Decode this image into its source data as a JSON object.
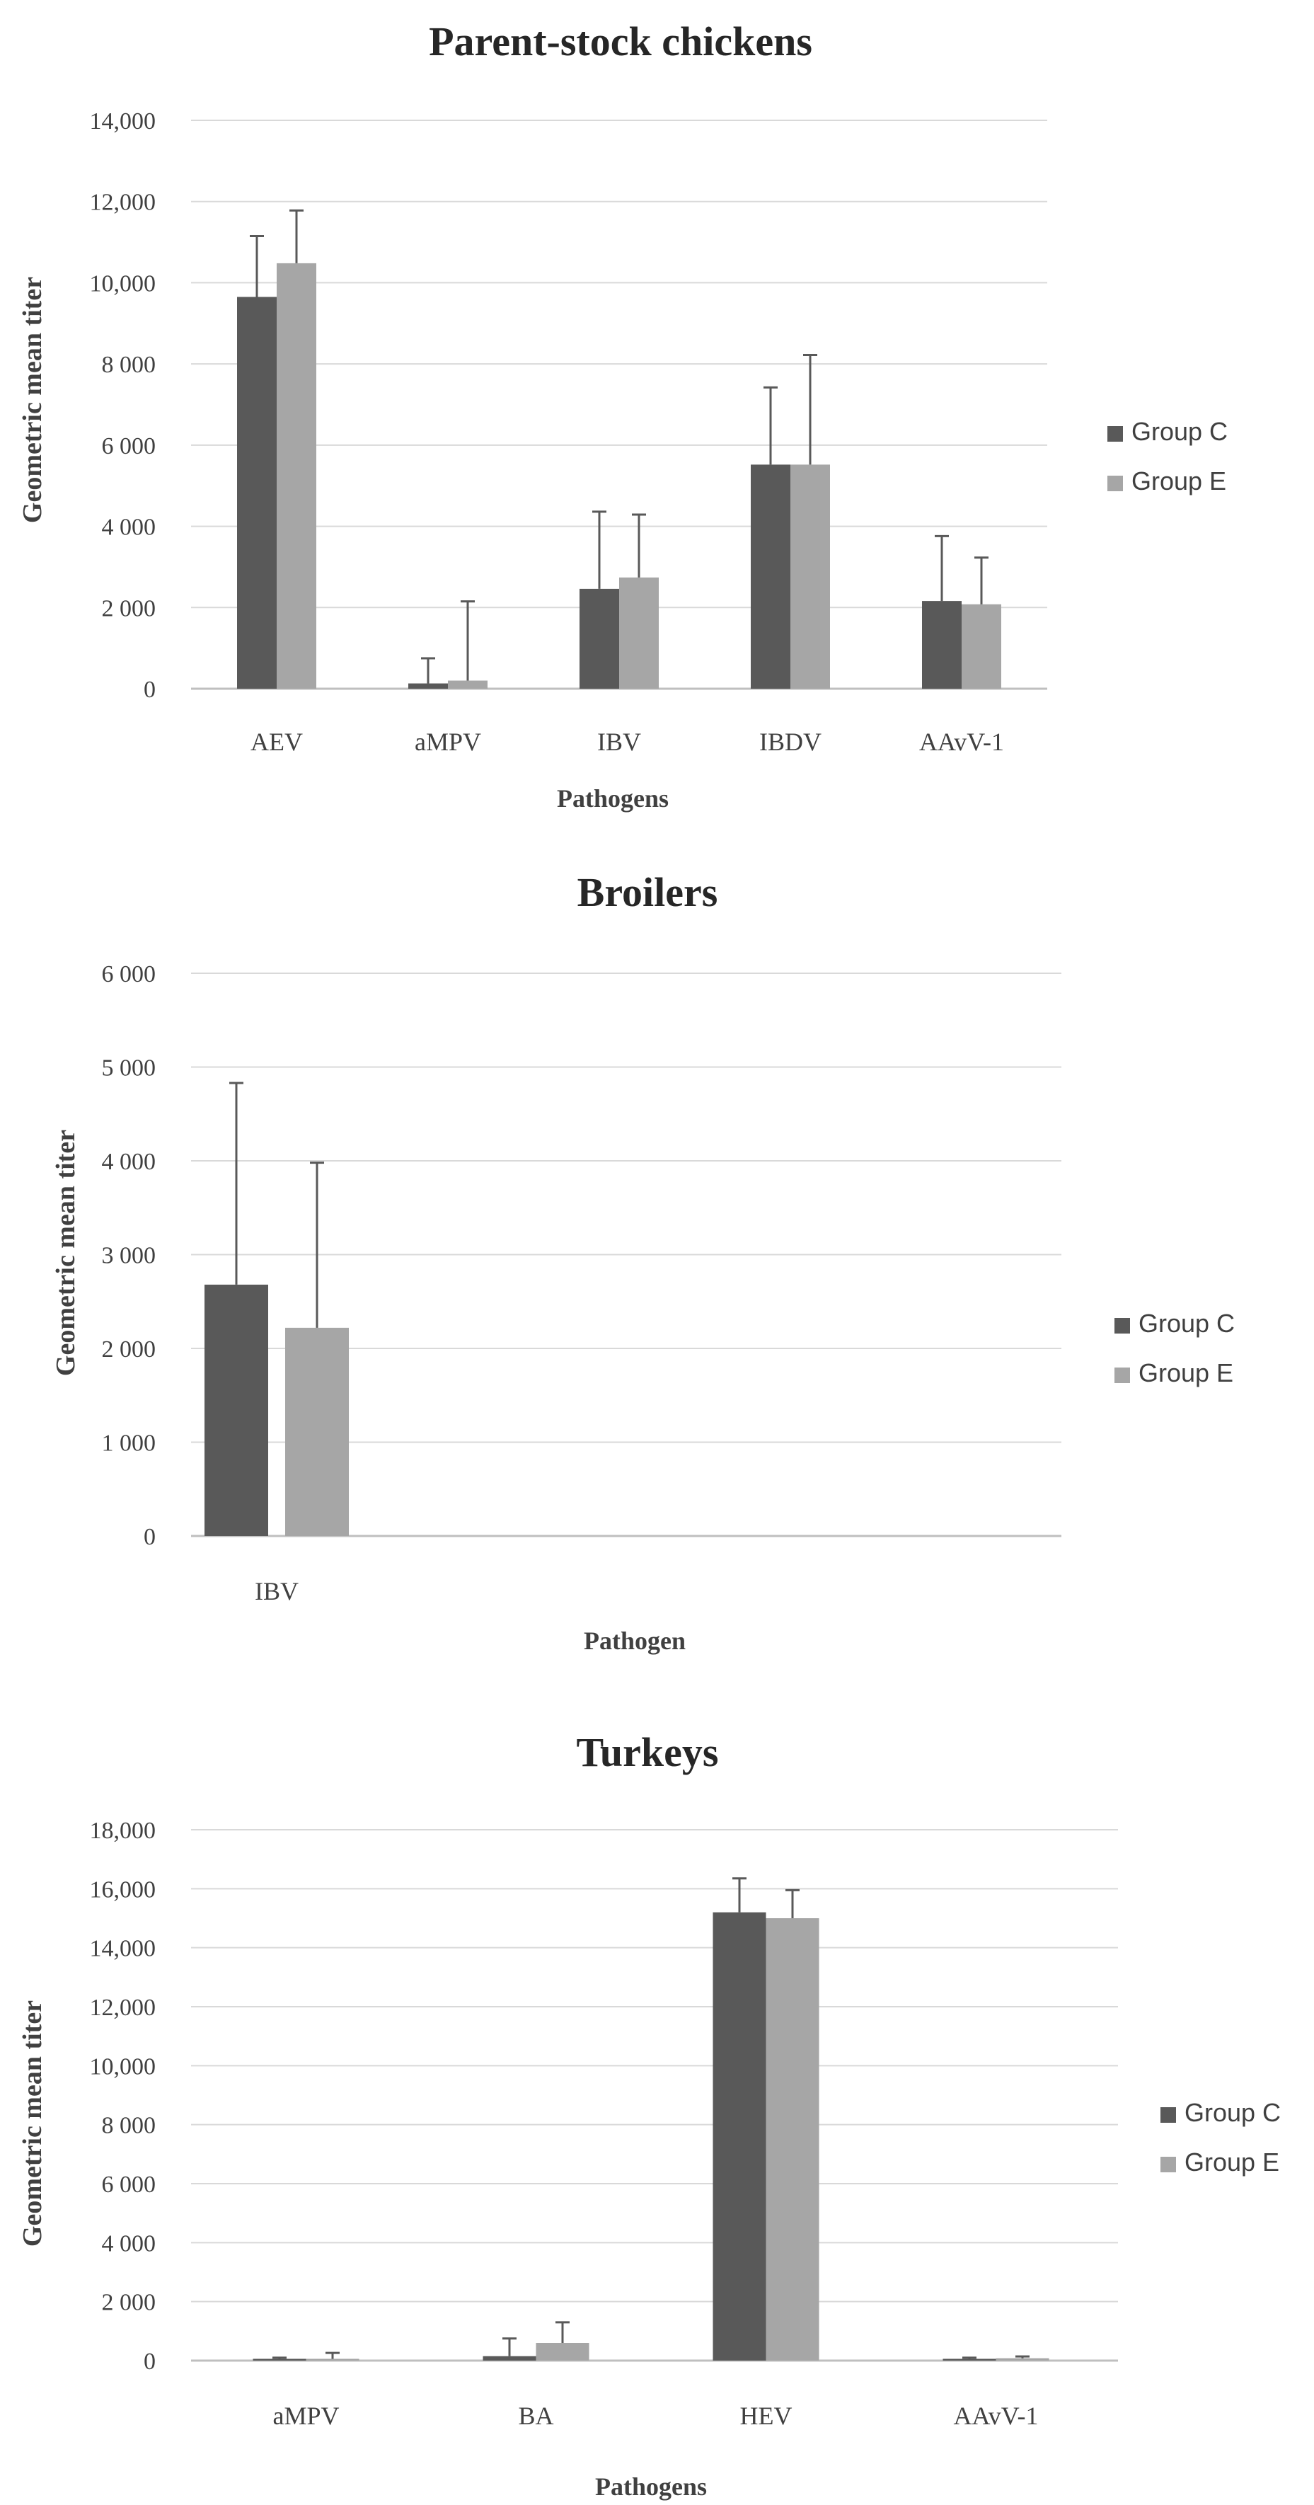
{
  "colors": {
    "group_c": "#595959",
    "group_e": "#a6a6a6",
    "grid": "#d9d9d9",
    "axis": "#bfbfbf",
    "text": "#404040",
    "title": "#262626"
  },
  "chart_data": [
    {
      "type": "bar",
      "title": "Parent-stock chickens",
      "xlabel": "Pathogens",
      "ylabel": "Geometric  mean  titer",
      "ylim": [
        0,
        14000
      ],
      "yticks": [
        0,
        2000,
        4000,
        6000,
        8000,
        10000,
        12000,
        14000
      ],
      "ytick_labels": [
        "0",
        "2 000",
        "4 000",
        "6 000",
        "8 000",
        "10,000",
        "12,000",
        "14,000"
      ],
      "categories": [
        "AEV",
        "aMPV",
        "IBV",
        "IBDV",
        "AAvV-1"
      ],
      "legend_position": "right",
      "grid": true,
      "series": [
        {
          "name": "Group C",
          "color_key": "group_c",
          "values": [
            9650,
            130,
            2460,
            5520,
            2160
          ],
          "error": [
            1500,
            620,
            1900,
            1900,
            1600
          ]
        },
        {
          "name": "Group E",
          "color_key": "group_e",
          "values": [
            10480,
            200,
            2740,
            5520,
            2080
          ],
          "error": [
            1300,
            1950,
            1550,
            2700,
            1150
          ]
        }
      ]
    },
    {
      "type": "bar",
      "title": "Broilers",
      "xlabel": "Pathogen",
      "ylabel": "Geometric  mean  titer",
      "ylim": [
        0,
        6000
      ],
      "yticks": [
        0,
        1000,
        2000,
        3000,
        4000,
        5000,
        6000
      ],
      "ytick_labels": [
        "0",
        "1 000",
        "2 000",
        "3 000",
        "4 000",
        "5 000",
        "6 000"
      ],
      "categories": [
        "IBV"
      ],
      "legend_position": "right",
      "grid": true,
      "series": [
        {
          "name": "Group C",
          "color_key": "group_c",
          "values": [
            2680
          ],
          "error": [
            2150
          ]
        },
        {
          "name": "Group E",
          "color_key": "group_e",
          "values": [
            2220
          ],
          "error": [
            1760
          ]
        }
      ]
    },
    {
      "type": "bar",
      "title": "Turkeys",
      "xlabel": "Pathogens",
      "ylabel": "Geometric  mean  titer",
      "ylim": [
        0,
        18000
      ],
      "yticks": [
        0,
        2000,
        4000,
        6000,
        8000,
        10000,
        12000,
        14000,
        16000,
        18000
      ],
      "ytick_labels": [
        "0",
        "2 000",
        "4 000",
        "6 000",
        "8 000",
        "10,000",
        "12,000",
        "14,000",
        "16,000",
        "18,000"
      ],
      "categories": [
        "aMPV",
        "BA",
        "HEV",
        "AAvV-1"
      ],
      "legend_position": "right",
      "grid": true,
      "series": [
        {
          "name": "Group C",
          "color_key": "group_c",
          "values": [
            60,
            150,
            15200,
            60
          ],
          "error": [
            40,
            600,
            1150,
            40
          ]
        },
        {
          "name": "Group E",
          "color_key": "group_e",
          "values": [
            60,
            600,
            15000,
            80
          ],
          "error": [
            200,
            700,
            950,
            60
          ]
        }
      ]
    }
  ]
}
